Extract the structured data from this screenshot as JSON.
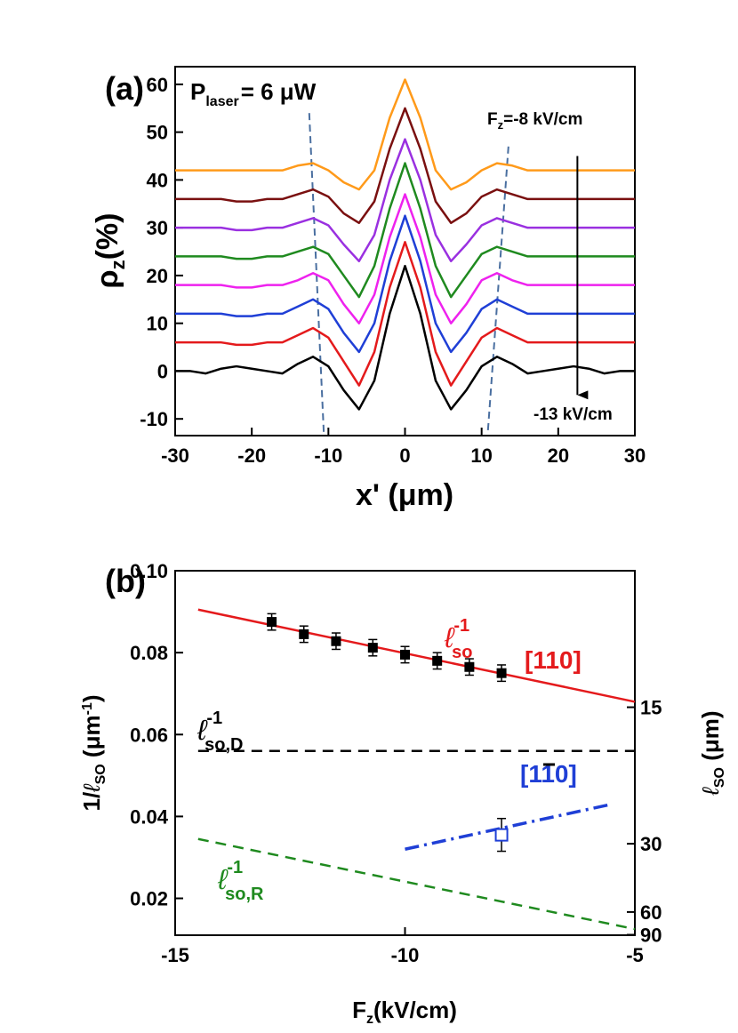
{
  "chart_data": [
    {
      "type": "line",
      "panel": "(a)",
      "xlabel": "x' (μm)",
      "ylabel": [
        "ρ",
        "z",
        "(%)"
      ],
      "xlim": [
        -30,
        30
      ],
      "ylim": [
        -13.5,
        63.7
      ],
      "xticks": [
        -30,
        -20,
        -10,
        0,
        10,
        20,
        30
      ],
      "yticks": [
        -10,
        0,
        10,
        20,
        30,
        40,
        50,
        60
      ],
      "annotations": {
        "power": [
          "P",
          "laser",
          "= 6 μW"
        ],
        "field_start": [
          "F",
          "z",
          "=-8 kV/cm"
        ],
        "field_end": "-13 kV/cm"
      },
      "guides": {
        "color": "#4a6fa0",
        "lines": [
          {
            "x": [
              -12.5,
              -10.6
            ],
            "y": [
              54,
              -13
            ]
          },
          {
            "x": [
              13.5,
              10.8
            ],
            "y": [
              47,
              -13
            ]
          }
        ]
      },
      "arrow": {
        "x": 22.5,
        "y": [
          45,
          -5
        ]
      },
      "x": [
        -30,
        -28,
        -26,
        -24,
        -22,
        -20,
        -18,
        -16,
        -14,
        -12,
        -10,
        -8,
        -6,
        -4,
        -2,
        0,
        2,
        4,
        6,
        8,
        10,
        12,
        14,
        16,
        18,
        20,
        22,
        24,
        26,
        28,
        30
      ],
      "series": [
        {
          "color": "#000000",
          "values": [
            0,
            0,
            -0.5,
            0.5,
            1,
            0.5,
            0,
            -0.5,
            1.5,
            3,
            1,
            -4,
            -8,
            -2,
            12,
            22,
            12,
            -2,
            -8,
            -4,
            1,
            3,
            1.5,
            -0.5,
            0,
            0.5,
            1,
            0.5,
            -0.5,
            0,
            0
          ]
        },
        {
          "color": "#e41a1c",
          "values": [
            6,
            6,
            6,
            6,
            5.5,
            5.5,
            6,
            6,
            7.5,
            9,
            7,
            2,
            -3,
            4,
            17.5,
            27,
            17.5,
            4,
            -3,
            2,
            7,
            9,
            7.5,
            6,
            6,
            6,
            6,
            6,
            6,
            6,
            6
          ]
        },
        {
          "color": "#1f3fd6",
          "values": [
            12,
            12,
            12,
            12,
            11.5,
            11.5,
            12,
            12,
            13.5,
            15,
            13,
            8,
            4,
            10,
            23,
            32.5,
            23,
            10,
            4,
            8,
            13,
            15,
            13.5,
            12,
            12,
            12,
            12,
            12,
            12,
            12,
            12
          ]
        },
        {
          "color": "#ee22ee",
          "values": [
            18,
            18,
            18,
            18,
            17.5,
            17.5,
            18,
            18,
            19,
            20.5,
            19,
            14,
            10,
            16,
            28,
            37,
            28,
            16,
            10,
            14,
            19,
            20.5,
            19,
            18,
            18,
            18,
            18,
            18,
            18,
            18,
            18
          ]
        },
        {
          "color": "#1f8a1f",
          "values": [
            24,
            24,
            24,
            24,
            23.5,
            23.5,
            24,
            24,
            25,
            26,
            24.5,
            20,
            15.5,
            22,
            34,
            43.5,
            34,
            22,
            15.5,
            20,
            24.5,
            26,
            25,
            24,
            24,
            24,
            24,
            24,
            24,
            24,
            24
          ]
        },
        {
          "color": "#9a30e0",
          "values": [
            30,
            30,
            30,
            30,
            29.5,
            29.5,
            30,
            30,
            31,
            32,
            30.5,
            26.5,
            23,
            28.5,
            40,
            48.5,
            40,
            28.5,
            23,
            26.5,
            30.5,
            32,
            31,
            30,
            30,
            30,
            30,
            30,
            30,
            30,
            30
          ]
        },
        {
          "color": "#7a1010",
          "values": [
            36,
            36,
            36,
            36,
            35.5,
            35.5,
            36,
            36,
            37,
            38,
            36.5,
            33,
            31,
            35.5,
            46.5,
            55,
            46.5,
            35.5,
            31,
            33,
            36.5,
            38,
            37,
            36,
            36,
            36,
            36,
            36,
            36,
            36,
            36
          ]
        },
        {
          "color": "#ff9a1a",
          "values": [
            42,
            42,
            42,
            42,
            42,
            42,
            42,
            42,
            43,
            43.5,
            42,
            39.5,
            38,
            42,
            53,
            61,
            53,
            42,
            38,
            39.5,
            42,
            43.5,
            43,
            42,
            42,
            42,
            42,
            42,
            42,
            42,
            42
          ]
        }
      ]
    },
    {
      "type": "scatter",
      "panel": "(b)",
      "xlabel": [
        "F",
        "z",
        "(kV/cm)"
      ],
      "ylabel": [
        "1/",
        "ℓ",
        "SO",
        " (μm",
        "-1",
        ")"
      ],
      "y2label": [
        "ℓ",
        "SO",
        " (μm)"
      ],
      "xlim": [
        -15,
        -5
      ],
      "ylim": [
        0.011,
        0.1
      ],
      "xticks": [
        -15,
        -10,
        -5
      ],
      "yticks": [
        0.02,
        0.04,
        0.06,
        0.08,
        {
          "value": 0.1,
          "label": "0.10"
        }
      ],
      "y2scale": "reciprocal",
      "y2lim": [
        10,
        91
      ],
      "y2ticks": [
        15,
        30,
        60,
        90
      ],
      "annotations": {
        "so": [
          "ℓ",
          "-1",
          "so"
        ],
        "dir1": "[110]",
        "soD": [
          "ℓ",
          "-1",
          "so,D"
        ],
        "dir2": "[110]",
        "soR": [
          "ℓ",
          "-1",
          "so,R"
        ]
      },
      "lines": [
        {
          "color": "#e41a1c",
          "dash": "solid",
          "x": [
            -14.5,
            -5
          ],
          "y": [
            0.0905,
            0.068
          ]
        },
        {
          "color": "#000000",
          "dash": "dashed",
          "x": [
            -14.5,
            -5
          ],
          "y": [
            0.056,
            0.056
          ]
        },
        {
          "color": "#1f8a1f",
          "dash": "dashed",
          "x": [
            -14.5,
            -5
          ],
          "y": [
            0.0345,
            0.0125
          ]
        },
        {
          "color": "#1f3fd6",
          "dash": "dashdot",
          "x": [
            -10,
            -5.5
          ],
          "y": [
            0.032,
            0.043
          ]
        }
      ],
      "series": [
        {
          "color": "#000000",
          "marker": "filled",
          "x": [
            -12.9,
            -12.2,
            -11.5,
            -10.7,
            -10,
            -9.3,
            -8.6,
            -7.9
          ],
          "values": [
            0.0875,
            0.0845,
            0.0828,
            0.0812,
            0.0795,
            0.078,
            0.0765,
            0.075
          ],
          "errors": [
            0.002,
            0.002,
            0.002,
            0.002,
            0.002,
            0.002,
            0.002,
            0.002
          ]
        },
        {
          "color": "#1f3fd6",
          "marker": "open",
          "x": [
            -7.9
          ],
          "values": [
            0.0355
          ],
          "errors": [
            0.004
          ]
        }
      ]
    }
  ]
}
